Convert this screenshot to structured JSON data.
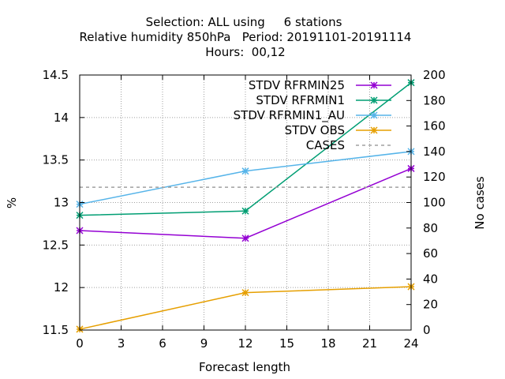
{
  "chart_data": {
    "type": "line",
    "title_lines": [
      "Selection: ALL using     6 stations",
      "Relative humidity 850hPa   Period: 20191101-20191114",
      "Hours:  00,12"
    ],
    "xlabel": "Forecast length",
    "ylabel": "%",
    "y2label": "No cases",
    "xlim": [
      0,
      24
    ],
    "ylim": [
      11.5,
      14.5
    ],
    "y2lim": [
      0,
      200
    ],
    "xticks": [
      0,
      3,
      6,
      9,
      12,
      15,
      18,
      21,
      24
    ],
    "yticks": [
      "11.5",
      "12",
      "12.5",
      "13",
      "13.5",
      "14",
      "14.5"
    ],
    "y2ticks": [
      0,
      20,
      40,
      60,
      80,
      100,
      120,
      140,
      160,
      180,
      200
    ],
    "grid": true,
    "legend_position": "top-right",
    "x": [
      0,
      12,
      24
    ],
    "series": [
      {
        "name": "STDV RFRMIN25",
        "color": "#9400d3",
        "axis": "y",
        "values": [
          12.67,
          12.58,
          13.4
        ]
      },
      {
        "name": "STDV RFRMIN1",
        "color": "#009e73",
        "axis": "y",
        "values": [
          12.85,
          12.9,
          14.41
        ]
      },
      {
        "name": "STDV RFRMIN1_AU",
        "color": "#56b4e9",
        "axis": "y",
        "values": [
          12.98,
          13.37,
          13.6
        ]
      },
      {
        "name": "STDV OBS",
        "color": "#e69f00",
        "axis": "y",
        "values": [
          11.51,
          11.94,
          12.01
        ]
      },
      {
        "name": "CASES",
        "color": "#a0a0a0",
        "axis": "y2",
        "dashed": true,
        "values": [
          112,
          112,
          112
        ]
      }
    ]
  }
}
